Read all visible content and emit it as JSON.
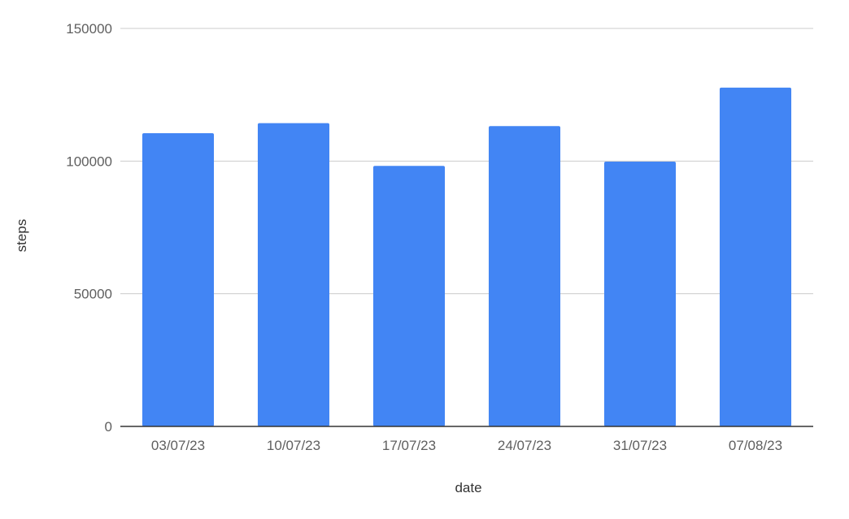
{
  "chart_data": {
    "type": "bar",
    "title": "",
    "xlabel": "date",
    "ylabel": "steps",
    "categories": [
      "03/07/23",
      "10/07/23",
      "17/07/23",
      "24/07/23",
      "31/07/23",
      "07/08/23"
    ],
    "series": [
      {
        "values": [
          110500,
          114300,
          98200,
          113200,
          99800,
          127700
        ],
        "color": "#4285f4"
      }
    ],
    "ylim": [
      0,
      150000
    ],
    "yticks": [
      "0",
      "50000",
      "100000",
      "150000"
    ],
    "grid": true,
    "legend": "none"
  }
}
